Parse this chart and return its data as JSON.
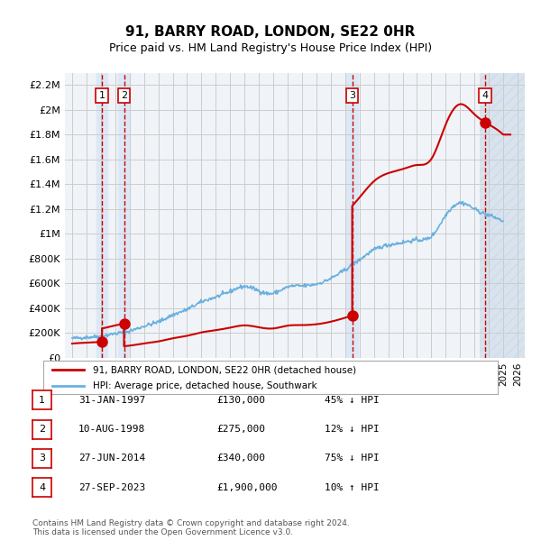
{
  "title": "91, BARRY ROAD, LONDON, SE22 0HR",
  "subtitle": "Price paid vs. HM Land Registry's House Price Index (HPI)",
  "ylim": [
    0,
    2300000
  ],
  "yticks": [
    0,
    200000,
    400000,
    600000,
    800000,
    1000000,
    1200000,
    1400000,
    1600000,
    1800000,
    2000000,
    2200000
  ],
  "ytick_labels": [
    "£0",
    "£200K",
    "£400K",
    "£600K",
    "£800K",
    "£1M",
    "£1.2M",
    "£1.4M",
    "£1.6M",
    "£1.8M",
    "£2M",
    "£2.2M"
  ],
  "xlim_start": 1994.5,
  "xlim_end": 2026.5,
  "sale_dates": [
    1997.08,
    1998.61,
    2014.49,
    2023.74
  ],
  "sale_prices": [
    130000,
    275000,
    340000,
    1900000
  ],
  "sale_labels": [
    "1",
    "2",
    "3",
    "4"
  ],
  "hpi_color": "#6ab0e0",
  "price_color": "#cc0000",
  "grid_color": "#cccccc",
  "bg_color": "#ffffff",
  "plot_bg_color": "#f0f4f8",
  "shade_color": "#dce8f5",
  "hatch_color": "#c8d8e8",
  "legend_label_red": "91, BARRY ROAD, LONDON, SE22 0HR (detached house)",
  "legend_label_blue": "HPI: Average price, detached house, Southwark",
  "table_rows": [
    {
      "num": "1",
      "date": "31-JAN-1997",
      "price": "£130,000",
      "hpi": "45% ↓ HPI"
    },
    {
      "num": "2",
      "date": "10-AUG-1998",
      "price": "£275,000",
      "hpi": "12% ↓ HPI"
    },
    {
      "num": "3",
      "date": "27-JUN-2014",
      "price": "£340,000",
      "hpi": "75% ↓ HPI"
    },
    {
      "num": "4",
      "date": "27-SEP-2023",
      "price": "£1,900,000",
      "hpi": "10% ↑ HPI"
    }
  ],
  "footer": "Contains HM Land Registry data © Crown copyright and database right 2024.\nThis data is licensed under the Open Government Licence v3.0.",
  "hpi_data_years": [
    1995,
    1996,
    1997,
    1998,
    1999,
    2000,
    2001,
    2002,
    2003,
    2004,
    2005,
    2006,
    2007,
    2008,
    2009,
    2010,
    2011,
    2012,
    2013,
    2014,
    2015,
    2016,
    2017,
    2018,
    2019,
    2020,
    2021,
    2022,
    2023,
    2024,
    2025
  ],
  "hpi_data_values": [
    155000,
    165000,
    175000,
    195000,
    215000,
    255000,
    290000,
    345000,
    390000,
    450000,
    490000,
    535000,
    575000,
    540000,
    520000,
    570000,
    580000,
    595000,
    640000,
    710000,
    790000,
    870000,
    910000,
    930000,
    950000,
    980000,
    1150000,
    1250000,
    1200000,
    1150000,
    1100000
  ]
}
